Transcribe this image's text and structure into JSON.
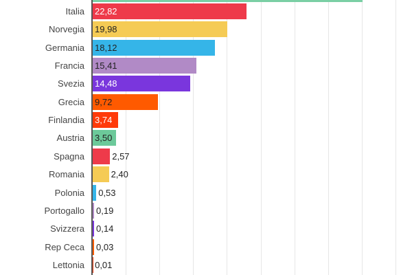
{
  "chart_data": {
    "type": "bar",
    "orientation": "horizontal",
    "title": "",
    "xlabel": "",
    "ylabel": "",
    "xlim": [
      0,
      45
    ],
    "grid": true,
    "gridline_step": 5,
    "truncated_top_bar": {
      "value": 40,
      "color": "#7ACFA4"
    },
    "categories": [
      "Italia",
      "Norvegia",
      "Germania",
      "Francia",
      "Svezia",
      "Grecia",
      "Finlandia",
      "Austria",
      "Spagna",
      "Romania",
      "Polonia",
      "Portogallo",
      "Svizzera",
      "Rep Ceca",
      "Lettonia"
    ],
    "values": [
      22.82,
      19.98,
      18.12,
      15.41,
      14.48,
      9.72,
      3.74,
      3.5,
      2.57,
      2.4,
      0.53,
      0.19,
      0.14,
      0.03,
      0.01
    ],
    "value_labels": [
      "22,82",
      "19,98",
      "18,12",
      "15,41",
      "14,48",
      "9,72",
      "3,74",
      "3,50",
      "2,57",
      "2,40",
      "0,53",
      "0,19",
      "0,14",
      "0,03",
      "0,01"
    ],
    "colors": [
      "#EE3A4A",
      "#F5CB55",
      "#35B5E8",
      "#B18AC6",
      "#7A36DD",
      "#FF5A00",
      "#FF3A0A",
      "#6CC99A",
      "#EE3A4A",
      "#F5CB55",
      "#35B5E8",
      "#B18AC6",
      "#7A36DD",
      "#FF5A00",
      "#FF3A0A"
    ],
    "label_colors": [
      "#ffffff",
      "#222222",
      "#222222",
      "#222222",
      "#ffffff",
      "#222222",
      "#ffffff",
      "#222222",
      "#222222",
      "#222222",
      "#222222",
      "#222222",
      "#222222",
      "#222222",
      "#222222"
    ]
  }
}
